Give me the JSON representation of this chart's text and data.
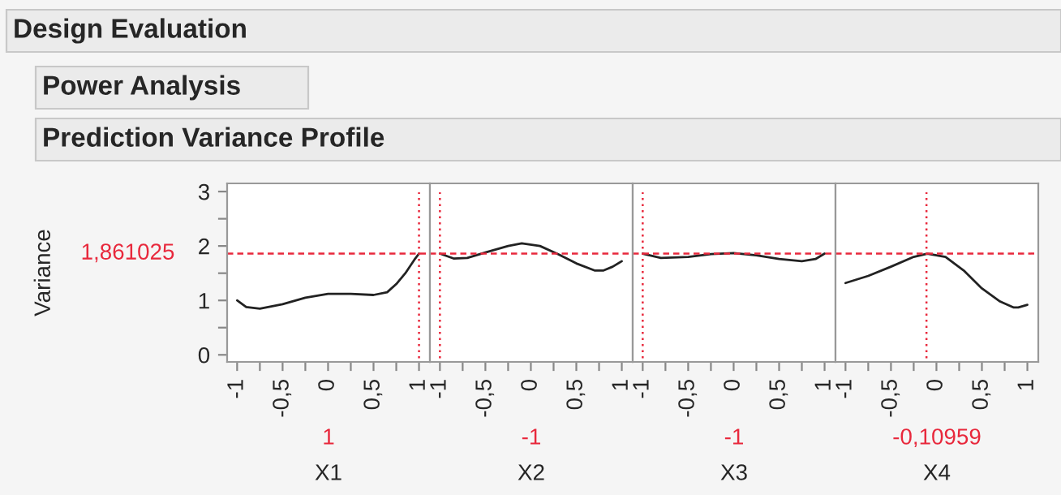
{
  "chart_data": [
    {
      "type": "line",
      "title": "Prediction Variance Profile",
      "annotations": [
        "Design Evaluation",
        "Power Analysis"
      ],
      "xlabel": "X1",
      "ylabel": "Variance",
      "x": [
        -1,
        -0.9,
        -0.75,
        -0.5,
        -0.25,
        0,
        0.25,
        0.5,
        0.65,
        0.75,
        0.85,
        0.95,
        1
      ],
      "series": [
        {
          "color": "#222222",
          "values": [
            1.0,
            0.88,
            0.85,
            0.93,
            1.05,
            1.12,
            1.12,
            1.1,
            1.15,
            1.3,
            1.5,
            1.75,
            1.86
          ]
        }
      ],
      "xlim": [
        -1.11,
        1.12
      ],
      "ylim": [
        -0.13,
        3.15
      ],
      "xticks": [
        -1,
        {
          "value": -0.75,
          "label": null
        },
        {
          "value": -0.5,
          "label": "-0,5"
        },
        {
          "value": -0.25,
          "label": null
        },
        0,
        {
          "value": 0.25,
          "label": null
        },
        {
          "value": 0.5,
          "label": "0,5"
        },
        {
          "value": 0.75,
          "label": null
        },
        1
      ],
      "yticks": [
        0,
        {
          "value": 0.5,
          "label": null
        },
        1,
        {
          "value": 1.5,
          "label": null
        },
        2,
        {
          "value": 2.5,
          "label": null
        },
        3
      ],
      "ref_lines": [
        {
          "axis": "y",
          "value": 1.861025,
          "label": "1,861025",
          "color": "#e8283c",
          "line_style": "dashed"
        },
        {
          "axis": "x",
          "value": 1,
          "label": "1",
          "color": "#e8283c",
          "line_style": "dotted"
        }
      ]
    },
    {
      "type": "line",
      "xlabel": "X2",
      "x": [
        -1,
        -0.85,
        -0.7,
        -0.5,
        -0.25,
        -0.1,
        0.1,
        0.3,
        0.5,
        0.7,
        0.8,
        0.9,
        1
      ],
      "series": [
        {
          "color": "#222222",
          "values": [
            1.86,
            1.77,
            1.78,
            1.88,
            2.0,
            2.05,
            2.0,
            1.85,
            1.68,
            1.55,
            1.55,
            1.62,
            1.72
          ]
        }
      ],
      "xlim": [
        -1.11,
        1.12
      ],
      "ylim": [
        -0.13,
        3.15
      ],
      "tick_labels": "x",
      "xticks": [
        -1,
        {
          "value": -0.75,
          "label": null
        },
        {
          "value": -0.5,
          "label": "-0,5"
        },
        {
          "value": -0.25,
          "label": null
        },
        0,
        {
          "value": 0.25,
          "label": null
        },
        {
          "value": 0.5,
          "label": "0,5"
        },
        {
          "value": 0.75,
          "label": null
        },
        1
      ],
      "ref_lines": [
        {
          "axis": "y",
          "value": 1.861025,
          "color": "#e8283c",
          "line_style": "dashed"
        },
        {
          "axis": "x",
          "value": -1,
          "label": "-1",
          "color": "#e8283c",
          "line_style": "dotted"
        }
      ]
    },
    {
      "type": "line",
      "xlabel": "X3",
      "x": [
        -1,
        -0.8,
        -0.5,
        -0.25,
        0,
        0.25,
        0.5,
        0.75,
        0.9,
        1
      ],
      "series": [
        {
          "color": "#222222",
          "values": [
            1.86,
            1.78,
            1.8,
            1.85,
            1.87,
            1.83,
            1.76,
            1.72,
            1.76,
            1.86
          ]
        }
      ],
      "xlim": [
        -1.11,
        1.12
      ],
      "ylim": [
        -0.13,
        3.15
      ],
      "tick_labels": "x",
      "xticks": [
        -1,
        {
          "value": -0.75,
          "label": null
        },
        {
          "value": -0.5,
          "label": "-0,5"
        },
        {
          "value": -0.25,
          "label": null
        },
        0,
        {
          "value": 0.25,
          "label": null
        },
        {
          "value": 0.5,
          "label": "0,5"
        },
        {
          "value": 0.75,
          "label": null
        },
        1
      ],
      "ref_lines": [
        {
          "axis": "y",
          "value": 1.861025,
          "color": "#e8283c",
          "line_style": "dashed"
        },
        {
          "axis": "x",
          "value": -1,
          "label": "-1",
          "color": "#e8283c",
          "line_style": "dotted"
        }
      ]
    },
    {
      "type": "line",
      "xlabel": "X4",
      "x": [
        -1,
        -0.75,
        -0.5,
        -0.25,
        -0.1,
        0.1,
        0.3,
        0.5,
        0.7,
        0.85,
        0.9,
        1
      ],
      "series": [
        {
          "color": "#222222",
          "values": [
            1.32,
            1.45,
            1.62,
            1.8,
            1.86,
            1.8,
            1.55,
            1.22,
            0.98,
            0.87,
            0.87,
            0.92
          ]
        }
      ],
      "xlim": [
        -1.11,
        1.12
      ],
      "ylim": [
        -0.13,
        3.15
      ],
      "tick_labels": "x",
      "xticks": [
        -1,
        {
          "value": -0.75,
          "label": null
        },
        {
          "value": -0.5,
          "label": "-0,5"
        },
        {
          "value": -0.25,
          "label": null
        },
        0,
        {
          "value": 0.25,
          "label": null
        },
        {
          "value": 0.5,
          "label": "0,5"
        },
        {
          "value": 0.75,
          "label": null
        },
        1
      ],
      "ref_lines": [
        {
          "axis": "y",
          "value": 1.861025,
          "color": "#e8283c",
          "line_style": "dashed"
        },
        {
          "axis": "x",
          "value": -0.10959,
          "label": "-0,10959",
          "color": "#e8283c",
          "line_style": "dotted"
        }
      ]
    }
  ]
}
